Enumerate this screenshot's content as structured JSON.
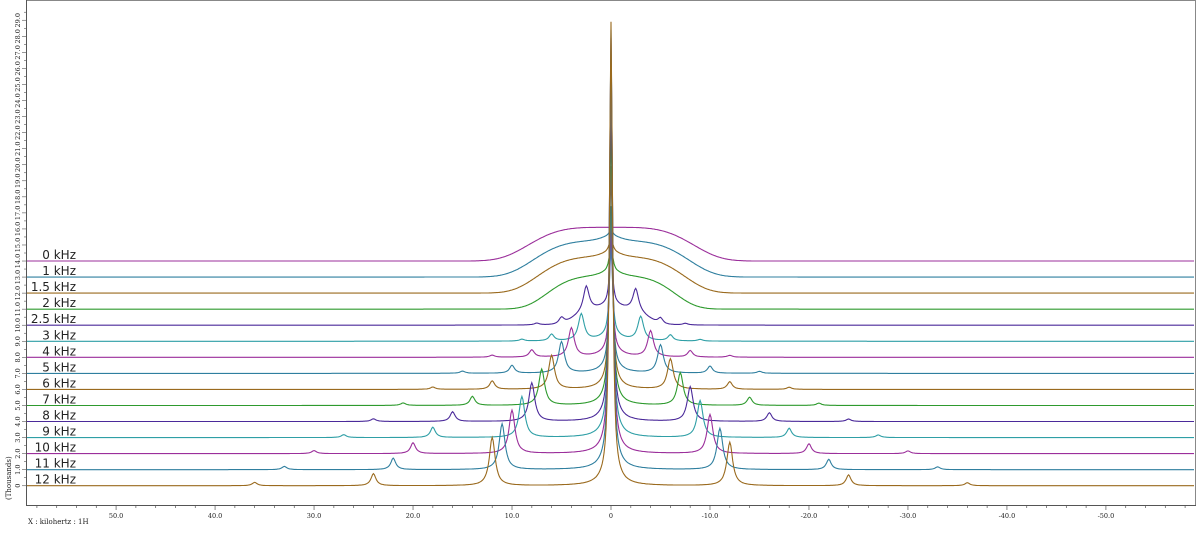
{
  "chart_data": {
    "type": "line",
    "xlabel": "X : kilohertz : 1H",
    "ylabel": "(Thousands)",
    "xlim": [
      59.0,
      -59.0
    ],
    "ylim": [
      -1.2,
      30.2
    ],
    "x_ticks": [
      "50.0",
      "40.0",
      "30.0",
      "20.0",
      "10.0",
      "0",
      "-10.0",
      "-20.0",
      "-30.0",
      "-40.0",
      "-50.0"
    ],
    "x_tick_values": [
      50,
      40,
      30,
      20,
      10,
      0,
      -10,
      -20,
      -30,
      -40,
      -50
    ],
    "y_ticks": [
      "0",
      "1.0",
      "2.0",
      "3.0",
      "4.0",
      "5.0",
      "6.0",
      "7.0",
      "8.0",
      "9.0",
      "10.0",
      "11.0",
      "12.0",
      "13.0",
      "14.0",
      "15.0",
      "16.0",
      "17.0",
      "18.0",
      "19.0",
      "20.0",
      "21.0",
      "22.0",
      "23.0",
      "24.0",
      "25.0",
      "26.0",
      "27.0",
      "28.0",
      "29.0"
    ],
    "grid": false,
    "legend": "none",
    "series": [
      {
        "name": "0 kHz",
        "color": "#9b2f9b",
        "baseline": 14.0,
        "spinning_khz": 0,
        "broad_width_khz": 9,
        "broad_height": 2.1,
        "center_height": 0
      },
      {
        "name": "1 kHz",
        "color": "#2f7f9f",
        "baseline": 13.0,
        "spinning_khz": 1,
        "broad_width_khz": 8.5,
        "broad_height": 2.2,
        "center_height": 0.4
      },
      {
        "name": "1.5 kHz",
        "color": "#9a6a1e",
        "baseline": 12.0,
        "spinning_khz": 1.5,
        "broad_width_khz": 8,
        "broad_height": 2.2,
        "center_height": 1.0
      },
      {
        "name": "2 kHz",
        "color": "#2e9a2e",
        "baseline": 11.0,
        "spinning_khz": 2,
        "broad_width_khz": 7,
        "broad_height": 2.0,
        "center_height": 1.8
      },
      {
        "name": "2.5 kHz",
        "color": "#4b2a9a",
        "baseline": 10.0,
        "spinning_khz": 2.5,
        "broad_width_khz": 4,
        "broad_height": 0.9,
        "center_height": 3.5
      },
      {
        "name": "3 kHz",
        "color": "#2f9fa6",
        "baseline": 9.0,
        "spinning_khz": 3,
        "broad_width_khz": 0,
        "broad_height": 0,
        "center_height": 5.5
      },
      {
        "name": "4 kHz",
        "color": "#9b2f9b",
        "baseline": 8.0,
        "spinning_khz": 4,
        "broad_width_khz": 0,
        "broad_height": 0,
        "center_height": 7.5
      },
      {
        "name": "5 kHz",
        "color": "#2f7f9f",
        "baseline": 7.0,
        "spinning_khz": 5,
        "broad_width_khz": 0,
        "broad_height": 0,
        "center_height": 10.0
      },
      {
        "name": "6 kHz",
        "color": "#9a6a1e",
        "baseline": 6.0,
        "spinning_khz": 6,
        "broad_width_khz": 0,
        "broad_height": 0,
        "center_height": 13.5
      },
      {
        "name": "7 kHz",
        "color": "#2e9a2e",
        "baseline": 5.0,
        "spinning_khz": 7,
        "broad_width_khz": 0,
        "broad_height": 0,
        "center_height": 17.0
      },
      {
        "name": "8 kHz",
        "color": "#4b2a9a",
        "baseline": 4.0,
        "spinning_khz": 8,
        "broad_width_khz": 0,
        "broad_height": 0,
        "center_height": 20.0
      },
      {
        "name": "9 kHz",
        "color": "#2f9fa6",
        "baseline": 3.0,
        "spinning_khz": 9,
        "broad_width_khz": 0,
        "broad_height": 0,
        "center_height": 23.0
      },
      {
        "name": "10 kHz",
        "color": "#9b2f9b",
        "baseline": 2.0,
        "spinning_khz": 10,
        "broad_width_khz": 0,
        "broad_height": 0,
        "center_height": 25.5
      },
      {
        "name": "11 kHz",
        "color": "#2f7f9f",
        "baseline": 1.0,
        "spinning_khz": 11,
        "broad_width_khz": 0,
        "broad_height": 0,
        "center_height": 27.0
      },
      {
        "name": "12 kHz",
        "color": "#9a6a1e",
        "baseline": 0.0,
        "spinning_khz": 12,
        "broad_width_khz": 0,
        "broad_height": 0,
        "center_height": 28.5
      }
    ]
  }
}
